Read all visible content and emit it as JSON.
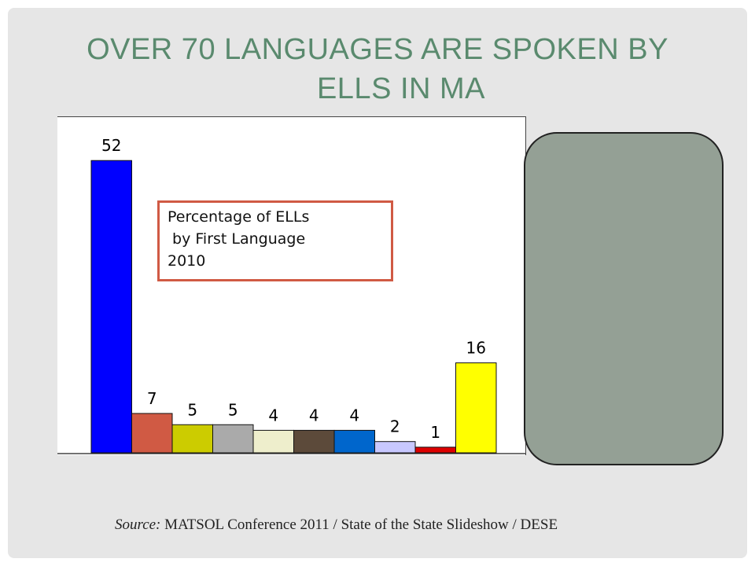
{
  "slide": {
    "title_line1": "OVER 70 LANGUAGES ARE SPOKEN BY",
    "title_line2": "ELLS IN MA",
    "chart_label": "Percentage of ELLs\n by First Language\n2010",
    "source_label": "Source:",
    "source_text": " MATSOL Conference 2011 / State of the State Slideshow / DESE"
  },
  "chart_data": {
    "type": "bar",
    "categories": [
      "",
      "",
      "",
      "",
      "",
      "",
      "",
      "",
      "",
      ""
    ],
    "values": [
      52,
      7,
      5,
      5,
      4,
      4,
      4,
      2,
      1,
      16
    ],
    "value_labels": [
      "52",
      "7",
      "5",
      "5",
      "4",
      "4",
      "4",
      "2",
      "1",
      "16"
    ],
    "colors": [
      "#0000ff",
      "#d05a44",
      "#cccc00",
      "#aaaaaa",
      "#eeeecc",
      "#5c4a3a",
      "#0066cc",
      "#c8c8ff",
      "#dd0000",
      "#ffff00"
    ],
    "title": "",
    "xlabel": "",
    "ylabel": "",
    "ylim": [
      0,
      60
    ],
    "grid": false
  }
}
